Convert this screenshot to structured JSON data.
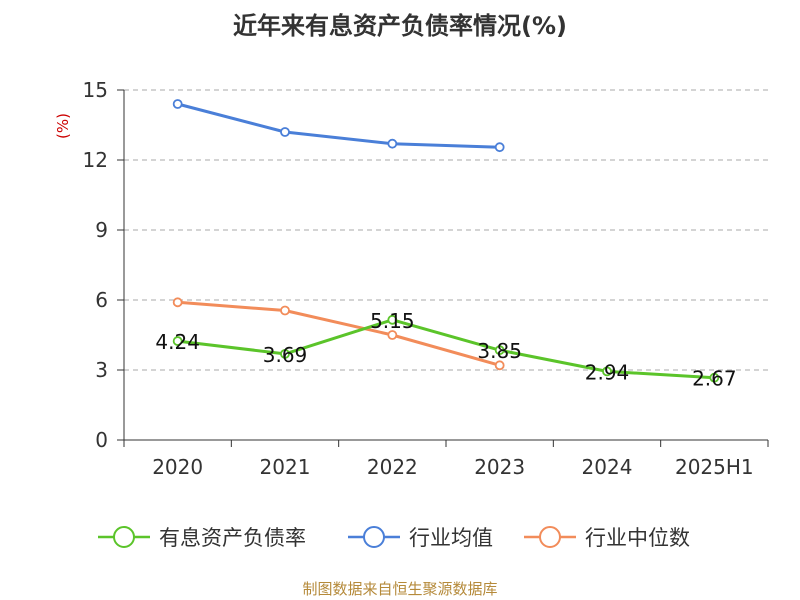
{
  "chart_data": {
    "type": "line",
    "title": "近年来有息资产负债率情况(%)",
    "ylabel": "(%)",
    "categories": [
      "2020",
      "2021",
      "2022",
      "2023",
      "2024",
      "2025H1"
    ],
    "yticks": [
      "0",
      "3",
      "6",
      "9",
      "12",
      "15"
    ],
    "ylim": [
      0,
      15
    ],
    "grid": true,
    "legend_position": "bottom",
    "series": [
      {
        "name": "有息资产负债率",
        "color": "#5bc42a",
        "values": [
          4.24,
          3.69,
          5.15,
          3.85,
          2.94,
          2.67
        ],
        "labels": true
      },
      {
        "name": "行业均值",
        "color": "#4a7fd8",
        "values": [
          14.4,
          13.2,
          12.7,
          12.55,
          null,
          null
        ],
        "labels": false
      },
      {
        "name": "行业中位数",
        "color": "#f28c5a",
        "values": [
          5.9,
          5.55,
          4.5,
          3.2,
          null,
          null
        ],
        "labels": false
      }
    ]
  },
  "footer": "制图数据来自恒生聚源数据库"
}
